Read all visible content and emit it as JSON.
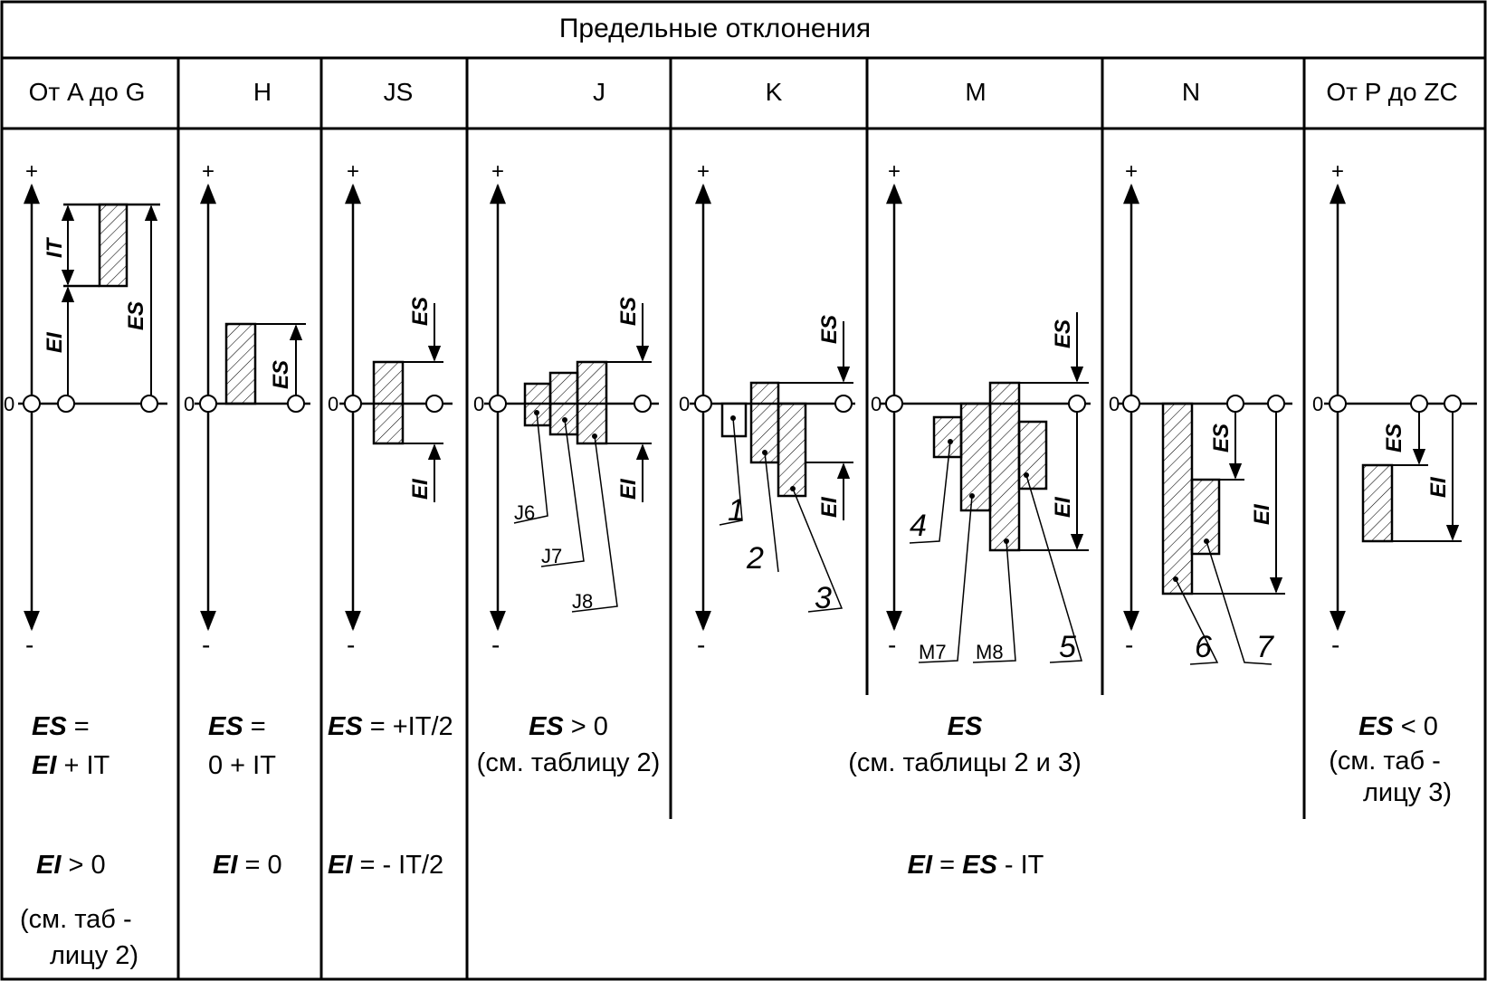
{
  "title": "Предельные отклонения",
  "columns": [
    {
      "id": "a-g",
      "label": "От  A  до  G"
    },
    {
      "id": "h",
      "label": "H"
    },
    {
      "id": "js",
      "label": "JS"
    },
    {
      "id": "j",
      "label": "J"
    },
    {
      "id": "k",
      "label": "K"
    },
    {
      "id": "m",
      "label": "M"
    },
    {
      "id": "n",
      "label": "N"
    },
    {
      "id": "p-zc",
      "label": "От  P  до  ZC"
    }
  ],
  "axis": {
    "plus": "+",
    "minus": "-",
    "zero": "0"
  },
  "dims": {
    "IT": "IT",
    "ES": "ES",
    "EI": "EI"
  },
  "fit_labels": {
    "J6": "J6",
    "J7": "J7",
    "J8": "J8",
    "M7": "M7",
    "M8": "M8"
  },
  "zone_numbers": [
    "1",
    "2",
    "3",
    "4",
    "5",
    "6",
    "7"
  ],
  "formulas": {
    "a_g_es": {
      "bold": "ES",
      "rest1": " =",
      "line2_bold": "EI",
      "line2_rest": " + IT"
    },
    "h_es": {
      "bold": "ES",
      "rest1": " =",
      "line2": "0 + IT"
    },
    "js_es": {
      "bold": "ES",
      "rest": " = +IT/2"
    },
    "j_es": {
      "bold": "ES",
      "rest": " > 0",
      "line2": "(см. таблицу 2)"
    },
    "kmn_es": {
      "bold": "ES",
      "line2": "(см. таблицы 2 и 3)"
    },
    "pzc_es": {
      "bold": "ES",
      "rest": " < 0",
      "line2": "(см. таб -",
      "line3": "лицу 3)"
    },
    "a_g_ei": {
      "bold": "EI",
      "rest": "  > 0",
      "line2": "(см. таб -",
      "line3": "лицу 2)"
    },
    "h_ei": {
      "bold": "EI",
      "rest": " = 0"
    },
    "js_ei": {
      "bold": "EI",
      "rest": " = - IT/2"
    },
    "jzc_ei": {
      "bold1": "EI",
      "mid": " = ",
      "bold2": "ES",
      "rest": " - IT"
    }
  }
}
